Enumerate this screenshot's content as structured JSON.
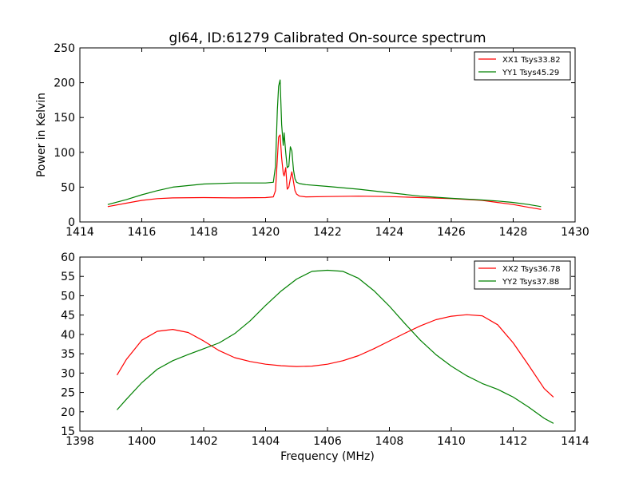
{
  "figure": {
    "title": "gl64, ID:61279 Calibrated On-source spectrum",
    "xlabel": "Frequency (MHz)"
  },
  "colors": {
    "xx": "#ff0000",
    "yy": "#008000"
  },
  "chart_data": [
    {
      "type": "line",
      "title": "gl64, ID:61279 Calibrated On-source spectrum",
      "xlabel": "",
      "ylabel": "Power in Kelvin",
      "xlim": [
        1414,
        1430
      ],
      "ylim": [
        0,
        250
      ],
      "xticks": [
        1414,
        1416,
        1418,
        1420,
        1422,
        1424,
        1426,
        1428,
        1430
      ],
      "yticks": [
        0,
        50,
        100,
        150,
        200,
        250
      ],
      "grid": false,
      "legend_position": "top-right",
      "series": [
        {
          "name": "XX1 Tsys33.82",
          "color": "#ff0000",
          "x": [
            1414.9,
            1415.5,
            1416.0,
            1416.5,
            1417.0,
            1418.0,
            1419.0,
            1420.0,
            1420.25,
            1420.32,
            1420.38,
            1420.42,
            1420.47,
            1420.52,
            1420.57,
            1420.6,
            1420.65,
            1420.7,
            1420.75,
            1420.8,
            1420.85,
            1420.9,
            1420.95,
            1421.0,
            1421.1,
            1421.3,
            1422.0,
            1423.0,
            1424.0,
            1425.0,
            1426.0,
            1427.0,
            1427.5,
            1428.0,
            1428.5,
            1428.9
          ],
          "y": [
            22,
            27,
            31,
            33.5,
            34.5,
            35,
            34.5,
            35,
            36,
            45,
            90,
            122,
            125,
            92,
            70,
            66,
            78,
            47,
            50,
            62,
            72,
            58,
            45,
            40,
            37,
            36,
            36.5,
            37,
            36.5,
            35,
            33.5,
            31,
            28,
            25,
            21,
            18
          ]
        },
        {
          "name": "YY1 Tsys45.29",
          "color": "#008000",
          "x": [
            1414.9,
            1415.5,
            1416.0,
            1416.5,
            1417.0,
            1418.0,
            1419.0,
            1420.0,
            1420.25,
            1420.32,
            1420.38,
            1420.42,
            1420.47,
            1420.52,
            1420.57,
            1420.6,
            1420.65,
            1420.7,
            1420.75,
            1420.8,
            1420.85,
            1420.9,
            1420.95,
            1421.0,
            1421.1,
            1421.3,
            1422.0,
            1423.0,
            1424.0,
            1425.0,
            1426.0,
            1427.0,
            1427.5,
            1428.0,
            1428.5,
            1428.9
          ],
          "y": [
            25,
            32,
            39,
            45,
            50,
            54.5,
            56,
            56,
            57,
            80,
            160,
            195,
            204,
            140,
            110,
            128,
            100,
            78,
            80,
            108,
            102,
            75,
            62,
            57,
            55,
            53.5,
            51,
            47,
            42,
            37,
            34,
            31.5,
            30,
            28,
            25,
            22
          ]
        }
      ]
    },
    {
      "type": "line",
      "title": "",
      "xlabel": "Frequency (MHz)",
      "ylabel": "",
      "xlim": [
        1398,
        1414
      ],
      "ylim": [
        15,
        60
      ],
      "xticks": [
        1398,
        1400,
        1402,
        1404,
        1406,
        1408,
        1410,
        1412,
        1414
      ],
      "yticks": [
        15,
        20,
        25,
        30,
        35,
        40,
        45,
        50,
        55,
        60
      ],
      "grid": false,
      "legend_position": "top-right",
      "series": [
        {
          "name": "XX2 Tsys36.78",
          "color": "#ff0000",
          "x": [
            1399.2,
            1399.5,
            1400.0,
            1400.5,
            1401.0,
            1401.5,
            1402.0,
            1402.5,
            1403.0,
            1403.5,
            1404.0,
            1404.5,
            1405.0,
            1405.5,
            1406.0,
            1406.5,
            1407.0,
            1407.5,
            1408.0,
            1408.5,
            1409.0,
            1409.5,
            1410.0,
            1410.5,
            1411.0,
            1411.5,
            1412.0,
            1412.5,
            1413.0,
            1413.3
          ],
          "y": [
            29.5,
            33.5,
            38.5,
            40.8,
            41.3,
            40.5,
            38.3,
            35.8,
            34,
            33,
            32.3,
            31.9,
            31.7,
            31.8,
            32.3,
            33.2,
            34.5,
            36.3,
            38.3,
            40.3,
            42.2,
            43.8,
            44.7,
            45.1,
            44.8,
            42.5,
            37.8,
            32,
            26,
            23.8
          ]
        },
        {
          "name": "YY2 Tsys37.88",
          "color": "#008000",
          "x": [
            1399.2,
            1399.5,
            1400.0,
            1400.5,
            1401.0,
            1401.5,
            1402.0,
            1402.5,
            1403.0,
            1403.5,
            1404.0,
            1404.5,
            1405.0,
            1405.5,
            1406.0,
            1406.5,
            1407.0,
            1407.5,
            1408.0,
            1408.5,
            1409.0,
            1409.5,
            1410.0,
            1410.5,
            1411.0,
            1411.5,
            1412.0,
            1412.5,
            1413.0,
            1413.3
          ],
          "y": [
            20.5,
            23.2,
            27.5,
            31,
            33.2,
            34.8,
            36.3,
            37.8,
            40.2,
            43.5,
            47.5,
            51.2,
            54.3,
            56.3,
            56.6,
            56.3,
            54.5,
            51.3,
            47.3,
            42.8,
            38.5,
            34.8,
            31.8,
            29.3,
            27.3,
            25.8,
            23.8,
            21.2,
            18.3,
            17
          ]
        }
      ]
    }
  ]
}
